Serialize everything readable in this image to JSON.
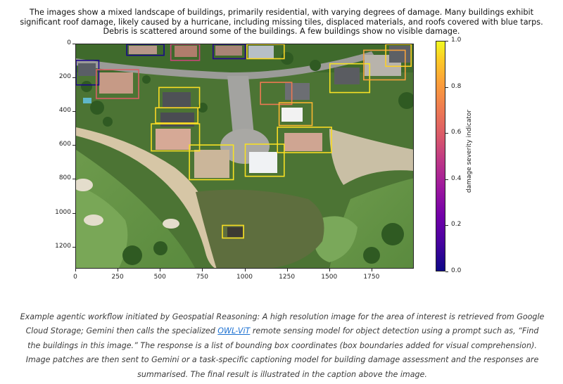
{
  "header_caption": "The images show a mixed landscape of buildings, primarily residential, with varying degrees of damage. Many buildings exhibit significant roof damage, likely caused by a hurricane, including missing tiles, displaced materials, and roofs covered with blue tarps. Debris is scattered around some of the buildings. A few buildings show no visible damage.",
  "plot": {
    "y_ticks": [
      "0",
      "200",
      "400",
      "600",
      "800",
      "1000",
      "1200"
    ],
    "x_ticks": [
      "0",
      "250",
      "500",
      "750",
      "1000",
      "1250",
      "1500",
      "1750"
    ],
    "colorbar_ticks": [
      "0.0",
      "0.2",
      "0.4",
      "0.6",
      "0.8",
      "1.0"
    ],
    "colorbar_label": "damage severity indicator",
    "colormap": [
      "#0d0887",
      "#7201a8",
      "#bd3786",
      "#ed7953",
      "#fdca26",
      "#f0f921"
    ],
    "bounding_boxes": [
      {
        "x1": 300,
        "y1": 0,
        "x2": 520,
        "y2": 65,
        "severity": 0.02
      },
      {
        "x1": 560,
        "y1": 0,
        "x2": 730,
        "y2": 95,
        "severity": 0.45
      },
      {
        "x1": 810,
        "y1": 0,
        "x2": 1000,
        "y2": 85,
        "severity": 0.05
      },
      {
        "x1": 1010,
        "y1": 0,
        "x2": 1230,
        "y2": 85,
        "severity": 0.85
      },
      {
        "x1": 0,
        "y1": 95,
        "x2": 135,
        "y2": 240,
        "severity": 0.03
      },
      {
        "x1": 120,
        "y1": 150,
        "x2": 370,
        "y2": 320,
        "severity": 0.52
      },
      {
        "x1": 1500,
        "y1": 115,
        "x2": 1735,
        "y2": 285,
        "severity": 0.9
      },
      {
        "x1": 1700,
        "y1": 35,
        "x2": 1945,
        "y2": 210,
        "severity": 0.7
      },
      {
        "x1": 1830,
        "y1": 0,
        "x2": 1980,
        "y2": 130,
        "severity": 0.82
      },
      {
        "x1": 1090,
        "y1": 225,
        "x2": 1275,
        "y2": 355,
        "severity": 0.6
      },
      {
        "x1": 490,
        "y1": 255,
        "x2": 730,
        "y2": 375,
        "severity": 0.88
      },
      {
        "x1": 1200,
        "y1": 345,
        "x2": 1395,
        "y2": 480,
        "severity": 0.75
      },
      {
        "x1": 470,
        "y1": 375,
        "x2": 720,
        "y2": 465,
        "severity": 0.85
      },
      {
        "x1": 445,
        "y1": 470,
        "x2": 730,
        "y2": 630,
        "severity": 0.88
      },
      {
        "x1": 1190,
        "y1": 490,
        "x2": 1510,
        "y2": 640,
        "severity": 0.87
      },
      {
        "x1": 670,
        "y1": 595,
        "x2": 930,
        "y2": 800,
        "severity": 0.9
      },
      {
        "x1": 1000,
        "y1": 590,
        "x2": 1230,
        "y2": 780,
        "severity": 0.89
      },
      {
        "x1": 865,
        "y1": 1070,
        "x2": 990,
        "y2": 1145,
        "severity": 0.88
      }
    ]
  },
  "footer": {
    "text_before_link": "Example agentic workflow initiated by Geospatial Reasoning: A high resolution image for the area of interest is retrieved from Google Cloud Storage; Gemini then calls the specialized ",
    "link_text": "OWL-ViT",
    "text_after_link": " remote sensing model for object detection using a prompt such as, “Find the buildings in this image.” The response is a list of bounding box coordinates (box boundaries added for visual comprehension). Image patches are then sent to Gemini or a task-specific captioning model for building damage assessment and the responses are summarised. The final result is illustrated in the caption above the image."
  }
}
